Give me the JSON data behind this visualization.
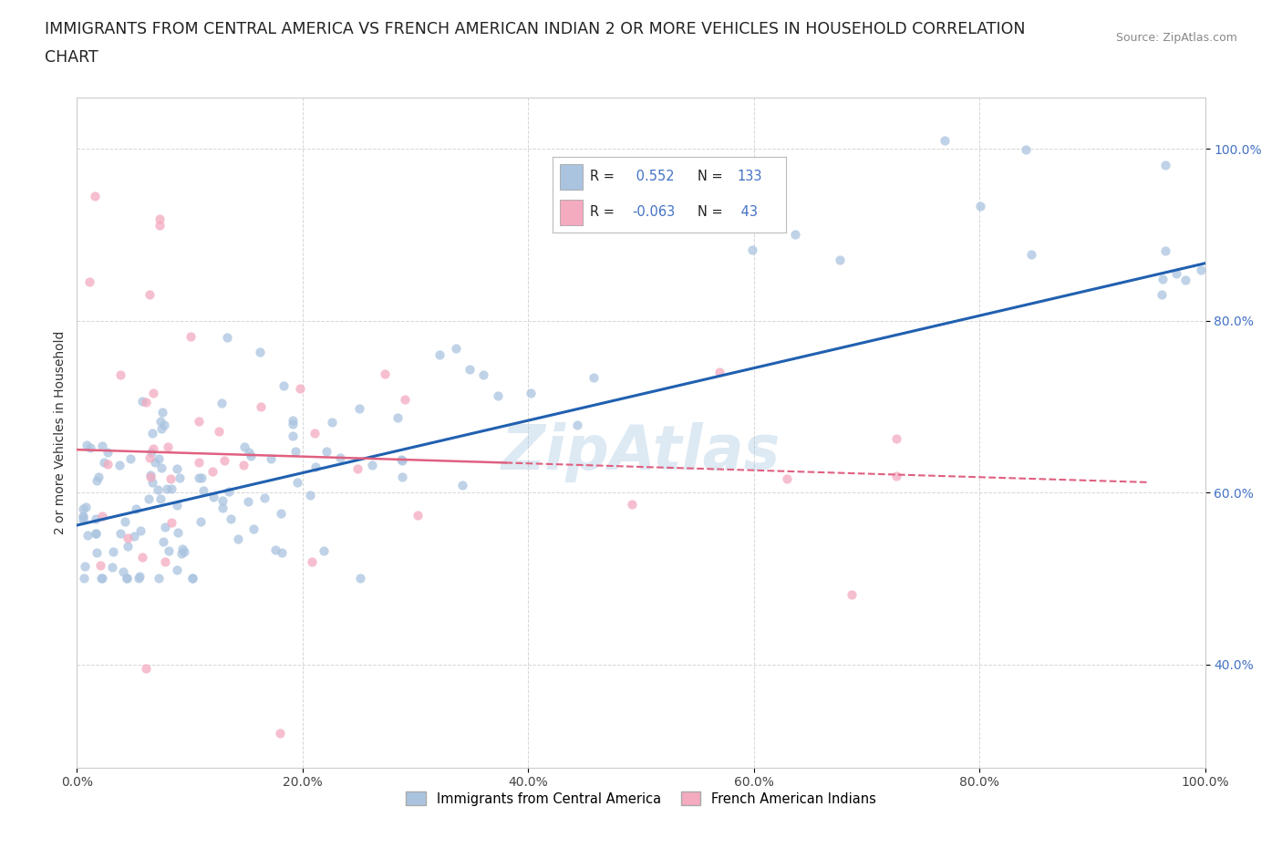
{
  "title_line1": "IMMIGRANTS FROM CENTRAL AMERICA VS FRENCH AMERICAN INDIAN 2 OR MORE VEHICLES IN HOUSEHOLD CORRELATION",
  "title_line2": "CHART",
  "source": "Source: ZipAtlas.com",
  "ylabel": "2 or more Vehicles in Household",
  "xmin": 0.0,
  "xmax": 1.0,
  "ymin": 0.28,
  "ymax": 1.06,
  "xtick_labels": [
    "0.0%",
    "20.0%",
    "40.0%",
    "60.0%",
    "80.0%",
    "100.0%"
  ],
  "xtick_values": [
    0.0,
    0.2,
    0.4,
    0.6,
    0.8,
    1.0
  ],
  "ytick_labels": [
    "40.0%",
    "60.0%",
    "80.0%",
    "100.0%"
  ],
  "ytick_values": [
    0.4,
    0.6,
    0.8,
    1.0
  ],
  "blue_color": "#aac4e0",
  "pink_color": "#f4aabf",
  "blue_line_color": "#2060b0",
  "pink_line_color": "#e06080",
  "legend_label_blue": "Immigrants from Central America",
  "legend_label_pink": "French American Indians",
  "R_blue": 0.552,
  "N_blue": 133,
  "R_pink": -0.063,
  "N_pink": 43,
  "watermark": "ZipAtlas",
  "bg_color": "#ffffff",
  "grid_color": "#cccccc",
  "title_fontsize": 12.5,
  "axis_label_fontsize": 10,
  "tick_fontsize": 10,
  "ytick_color": "#4472c4"
}
